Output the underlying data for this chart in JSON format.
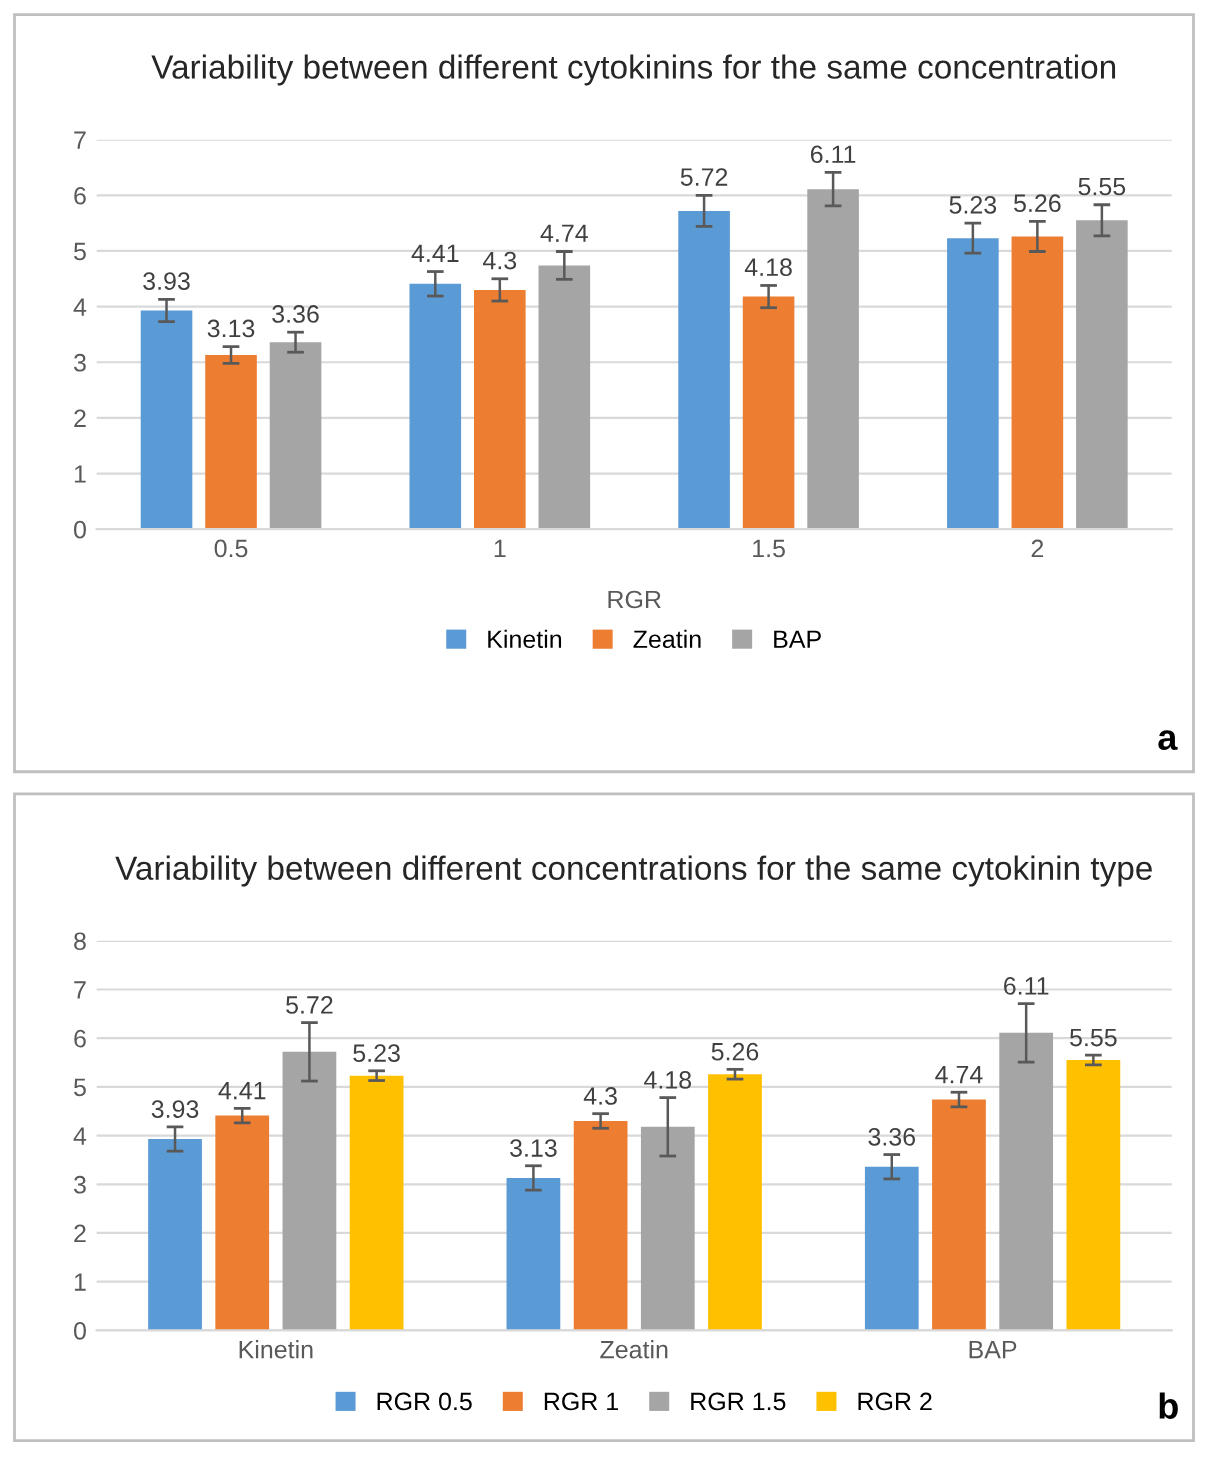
{
  "chart_data": [
    {
      "type": "bar",
      "title": "Variability between different cytokinins for the same concentration",
      "xlabel": "RGR",
      "categories": [
        "0.5",
        "1",
        "1.5",
        "2"
      ],
      "series": [
        {
          "name": "Kinetin",
          "color": "#5b9bd5",
          "values": [
            3.93,
            4.41,
            5.72,
            5.23
          ],
          "errors": [
            0.2,
            0.22,
            0.28,
            0.27
          ]
        },
        {
          "name": "Zeatin",
          "color": "#ed7d31",
          "values": [
            3.13,
            4.3,
            4.18,
            5.26
          ],
          "errors": [
            0.15,
            0.2,
            0.2,
            0.27
          ]
        },
        {
          "name": "BAP",
          "color": "#a5a5a5",
          "values": [
            3.36,
            4.74,
            6.11,
            5.55
          ],
          "errors": [
            0.18,
            0.25,
            0.3,
            0.28
          ]
        }
      ],
      "ylim": [
        0,
        7
      ],
      "yticks": [
        0,
        1,
        2,
        3,
        4,
        5,
        6,
        7
      ],
      "grid": "y",
      "legend": "bottom",
      "data_labels": true,
      "annotations": [
        "a"
      ]
    },
    {
      "type": "bar",
      "title": "Variability between different concentrations for the same cytokinin type",
      "categories": [
        "Kinetin",
        "Zeatin",
        "BAP"
      ],
      "series": [
        {
          "name": "RGR 0.5",
          "color": "#5b9bd5",
          "values": [
            3.93,
            3.13,
            3.36
          ],
          "errors": [
            0.25,
            0.25,
            0.25
          ]
        },
        {
          "name": "RGR 1",
          "color": "#ed7d31",
          "values": [
            4.41,
            4.3,
            4.74
          ],
          "errors": [
            0.15,
            0.15,
            0.15
          ]
        },
        {
          "name": "RGR 1.5",
          "color": "#a5a5a5",
          "values": [
            5.72,
            4.18,
            6.11
          ],
          "errors": [
            0.6,
            0.6,
            0.6
          ]
        },
        {
          "name": "RGR 2",
          "color": "#ffc000",
          "values": [
            5.23,
            5.26,
            5.55
          ],
          "errors": [
            0.1,
            0.1,
            0.1
          ]
        }
      ],
      "ylim": [
        0,
        8
      ],
      "yticks": [
        0,
        1,
        2,
        3,
        4,
        5,
        6,
        7,
        8
      ],
      "grid": "y",
      "legend": "bottom",
      "data_labels": true,
      "annotations": [
        "b"
      ]
    }
  ]
}
